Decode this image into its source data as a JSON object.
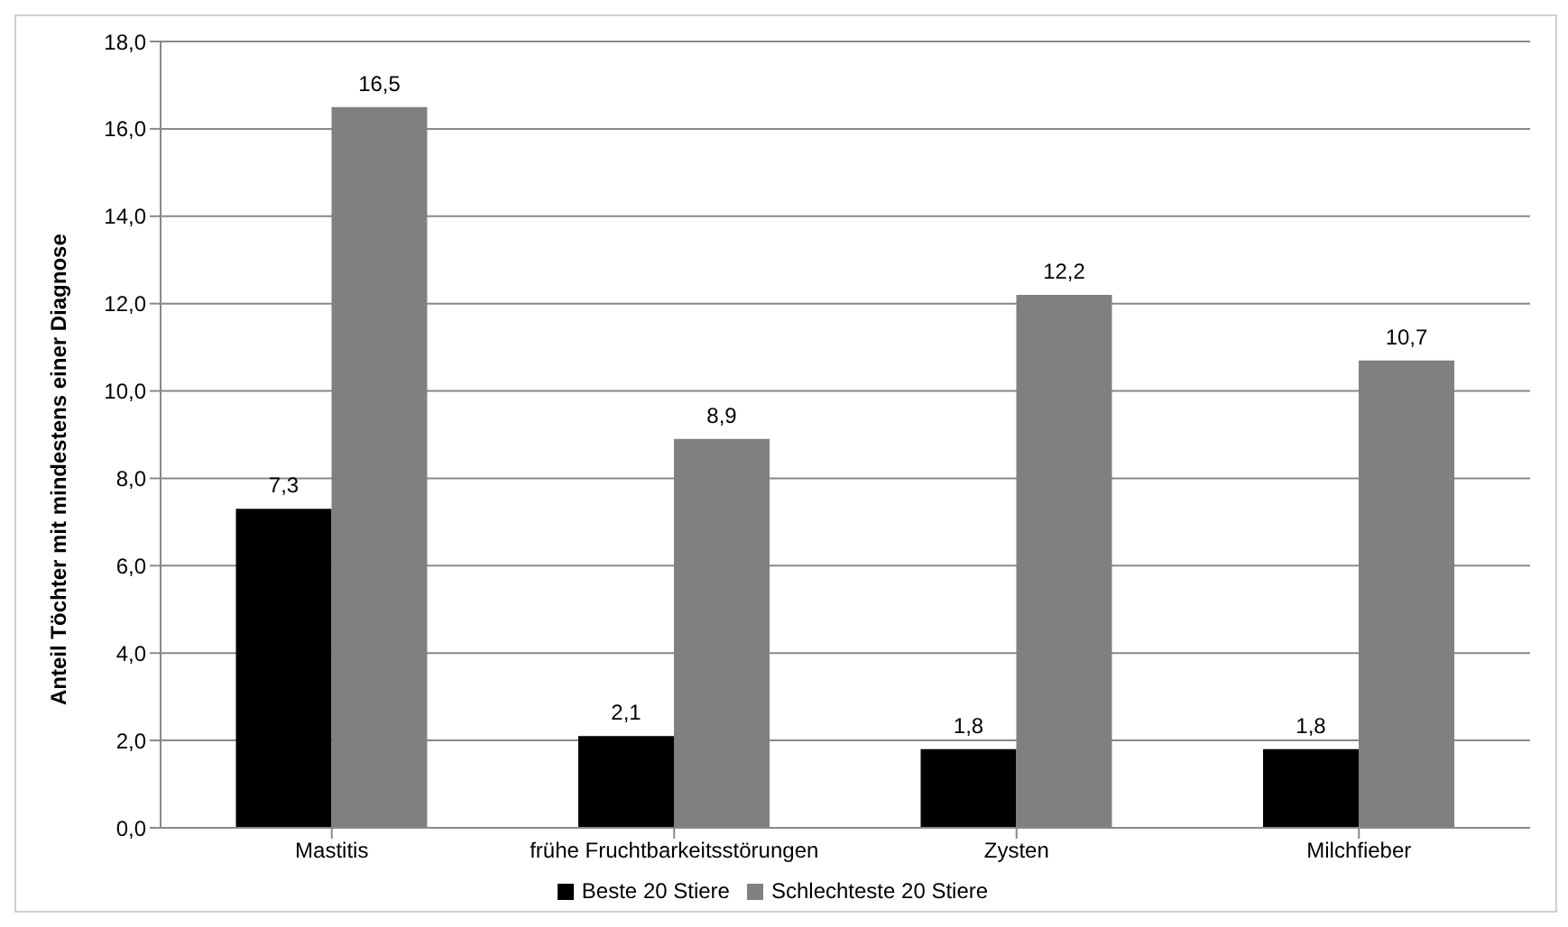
{
  "chart_data": {
    "type": "bar",
    "ylabel": "Anteil Töchter mit mindestens einer Diagnose",
    "categories": [
      "Mastitis",
      "frühe Fruchtbarkeitsstörungen",
      "Zysten",
      "Milchfieber"
    ],
    "series": [
      {
        "name": "Beste 20 Stiere",
        "color": "#000000",
        "values": [
          7.3,
          2.1,
          1.8,
          1.8
        ],
        "value_labels": [
          "7,3",
          "2,1",
          "1,8",
          "1,8"
        ]
      },
      {
        "name": "Schlechteste 20 Stiere",
        "color": "#808080",
        "values": [
          16.5,
          8.9,
          12.2,
          10.7
        ],
        "value_labels": [
          "16,5",
          "8,9",
          "12,2",
          "10,7"
        ]
      }
    ],
    "ylim": [
      0,
      18
    ],
    "yticks": [
      {
        "value": 0,
        "label": "0,0"
      },
      {
        "value": 2,
        "label": "2,0"
      },
      {
        "value": 4,
        "label": "4,0"
      },
      {
        "value": 6,
        "label": "6,0"
      },
      {
        "value": 8,
        "label": "8,0"
      },
      {
        "value": 10,
        "label": "10,0"
      },
      {
        "value": 12,
        "label": "12,0"
      },
      {
        "value": 14,
        "label": "14,0"
      },
      {
        "value": 16,
        "label": "16,0"
      },
      {
        "value": 18,
        "label": "18,0"
      }
    ],
    "grid": "y",
    "legend": "bottom"
  }
}
